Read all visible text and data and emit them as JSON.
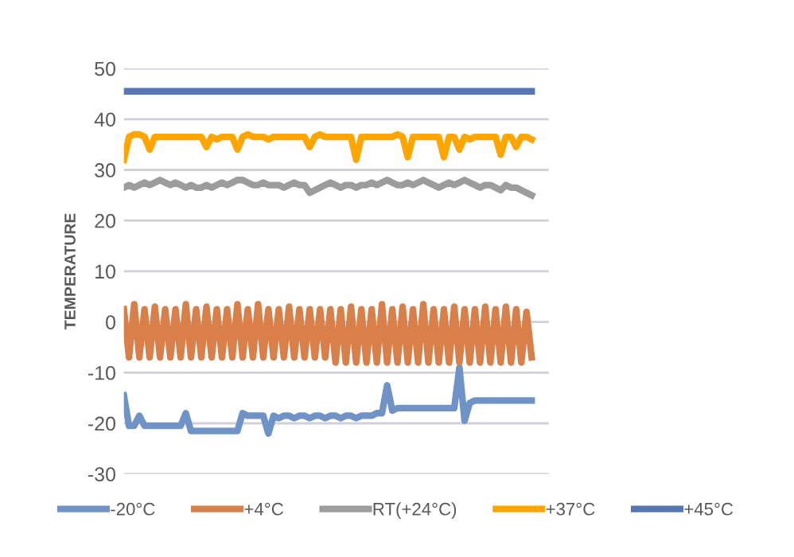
{
  "chart_data": {
    "type": "line",
    "ylabel": "TEMPERATURE",
    "categories": [
      null,
      null,
      null,
      null,
      null,
      null,
      null,
      null,
      null,
      null,
      null,
      null,
      null,
      null,
      null,
      null,
      null,
      null,
      null,
      null,
      null,
      null,
      null,
      null,
      null,
      null,
      null,
      null,
      null,
      null,
      null,
      null,
      null,
      null,
      null,
      null,
      null,
      null,
      null,
      null,
      null,
      null,
      null,
      null,
      null,
      null,
      null,
      null,
      null,
      null,
      null,
      null,
      null,
      null,
      null,
      null,
      null,
      null,
      null,
      null,
      null,
      null,
      null,
      null,
      null,
      null,
      null,
      null,
      null,
      null,
      null,
      null,
      null,
      null,
      null,
      null,
      null,
      null,
      null,
      null
    ],
    "ylim": [
      -30,
      50
    ],
    "yticks": [
      -30,
      -20,
      -10,
      0,
      10,
      20,
      30,
      40,
      50
    ],
    "grid": "y",
    "legend": "bottom",
    "marker": "none",
    "line_style": "solid",
    "tick_labels": "y",
    "series": [
      {
        "name": "-20°C",
        "color": "#6f93c6",
        "values": [
          -14.5,
          -20.5,
          -20.5,
          -18.5,
          -20.5,
          -20.5,
          -20.5,
          -20.5,
          -20.5,
          -20.5,
          -20.5,
          -20.5,
          -18,
          -21.5,
          -21.5,
          -21.5,
          -21.5,
          -21.5,
          -21.5,
          -21.5,
          -21.5,
          -21.5,
          -21.5,
          -18,
          -18.5,
          -18.5,
          -18.5,
          -18.5,
          -22,
          -18.5,
          -19,
          -18.5,
          -18.5,
          -19,
          -18.5,
          -18.5,
          -19,
          -18.5,
          -18.5,
          -19,
          -18.5,
          -18.5,
          -19,
          -18.5,
          -18.5,
          -19,
          -18.5,
          -18.5,
          -18.5,
          -18,
          -18,
          -12.5,
          -17.5,
          -17,
          -17,
          -17,
          -17,
          -17,
          -17,
          -17,
          -17,
          -17,
          -17,
          -17,
          -17,
          -9,
          -19.5,
          -16,
          -15.5,
          -15.5,
          -15.5,
          -15.5,
          -15.5,
          -15.5,
          -15.5,
          -15.5,
          -15.5,
          -15.5,
          -15.5,
          -15.5
        ]
      },
      {
        "name": "+4°C",
        "color": "#d9804a",
        "values": [
          2.5,
          -7,
          3.5,
          -7,
          2.5,
          -7,
          3,
          -7,
          2.5,
          -7,
          2.5,
          -7,
          3.5,
          -7,
          2.5,
          -7,
          3,
          -7,
          2.5,
          -7,
          2.5,
          -7,
          3.5,
          -7,
          2.5,
          -7,
          3.5,
          -7,
          2.5,
          -7,
          2.5,
          -7,
          3,
          -7,
          2.5,
          -7,
          2.5,
          -7,
          2.5,
          -7,
          2.5,
          -8,
          2.5,
          -8,
          3,
          -8,
          2.5,
          -8,
          2.5,
          -8,
          3.5,
          -8,
          2.5,
          -8,
          3,
          -8,
          2.5,
          -8,
          3.5,
          -8,
          2.5,
          -8,
          2.5,
          -8,
          3,
          -8,
          2.5,
          -8,
          2.5,
          -8,
          3,
          -8,
          2.5,
          -8,
          3,
          -8,
          2.5,
          -8,
          2,
          -7
        ]
      },
      {
        "name": "RT(+24°C)",
        "color": "#9c9c9c",
        "values": [
          26.5,
          27,
          26.5,
          27,
          27.5,
          27,
          27.5,
          28,
          27.5,
          27,
          27.5,
          27,
          26.5,
          27,
          26.5,
          26.5,
          27,
          26.5,
          27,
          27.5,
          27,
          27.5,
          28,
          28,
          27.5,
          27,
          27,
          27.5,
          27,
          27,
          27,
          26.5,
          27,
          27.5,
          27,
          27,
          25.5,
          26,
          26.5,
          27,
          27.5,
          27,
          26.5,
          27,
          27,
          26.5,
          27,
          27,
          27.5,
          27,
          27.5,
          28,
          27.5,
          27,
          27,
          27.5,
          27,
          27.5,
          28,
          27.5,
          27,
          26.5,
          27,
          27.5,
          27,
          27.5,
          28,
          27.5,
          27,
          26.5,
          27,
          27,
          26.5,
          26,
          27,
          26.5,
          26.5,
          26,
          25.5,
          25
        ]
      },
      {
        "name": "+37°C",
        "color": "#ffa500",
        "values": [
          32,
          36.5,
          37,
          37,
          36.5,
          34,
          36.5,
          36.5,
          36.5,
          36.5,
          36.5,
          36.5,
          36.5,
          36.5,
          36.5,
          36.5,
          34.5,
          36.5,
          36,
          36.5,
          36.5,
          36.5,
          34,
          36.5,
          37,
          36.5,
          36.5,
          36.5,
          36,
          36.5,
          36.5,
          36.5,
          36.5,
          36.5,
          36.5,
          36.5,
          34.5,
          36.5,
          37,
          36.5,
          36.5,
          36.5,
          36.5,
          36.5,
          36.5,
          32,
          36.5,
          36.5,
          36.5,
          36.5,
          36.5,
          36.5,
          36.5,
          37,
          36.5,
          32.5,
          36.5,
          36.5,
          36.5,
          36.5,
          36.5,
          36.5,
          32.5,
          36.5,
          36.5,
          34,
          36.5,
          36,
          36.5,
          36.5,
          36.5,
          36.5,
          36.5,
          33,
          36.5,
          36.5,
          34.5,
          36.5,
          36.5,
          36
        ]
      },
      {
        "name": "+45°C",
        "color": "#5677b3",
        "values": [
          45.5,
          45.5,
          45.5,
          45.5,
          45.5,
          45.5,
          45.5,
          45.5,
          45.5,
          45.5,
          45.5,
          45.5,
          45.5,
          45.5,
          45.5,
          45.5,
          45.5,
          45.5,
          45.5,
          45.5,
          45.5,
          45.5,
          45.5,
          45.5,
          45.5,
          45.5,
          45.5,
          45.5,
          45.5,
          45.5,
          45.5,
          45.5,
          45.5,
          45.5,
          45.5,
          45.5,
          45.5,
          45.5,
          45.5,
          45.5,
          45.5,
          45.5,
          45.5,
          45.5,
          45.5,
          45.5,
          45.5,
          45.5,
          45.5,
          45.5,
          45.5,
          45.5,
          45.5,
          45.5,
          45.5,
          45.5,
          45.5,
          45.5,
          45.5,
          45.5,
          45.5,
          45.5,
          45.5,
          45.5,
          45.5,
          45.5,
          45.5,
          45.5,
          45.5,
          45.5,
          45.5,
          45.5,
          45.5,
          45.5,
          45.5,
          45.5,
          45.5,
          45.5,
          45.5,
          45.5
        ]
      }
    ]
  }
}
